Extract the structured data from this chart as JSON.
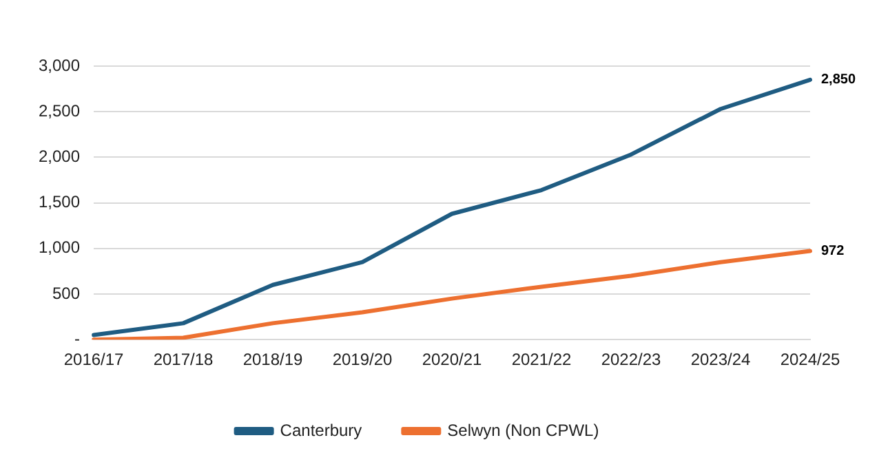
{
  "chart_data": {
    "type": "line",
    "categories": [
      "2016/17",
      "2017/18",
      "2018/19",
      "2019/20",
      "2020/21",
      "2021/22",
      "2022/23",
      "2023/24",
      "2024/25"
    ],
    "series": [
      {
        "name": "Canterbury",
        "color": "#1f5c82",
        "values": [
          50,
          180,
          600,
          850,
          1380,
          1640,
          2030,
          2530,
          2850
        ],
        "value_labels": [
          null,
          null,
          null,
          null,
          null,
          null,
          null,
          null,
          "2,850"
        ]
      },
      {
        "name": "Selwyn (Non CPWL)",
        "color": "#ed7030",
        "values": [
          0,
          20,
          180,
          300,
          450,
          580,
          700,
          850,
          972
        ],
        "value_labels": [
          null,
          null,
          null,
          null,
          null,
          null,
          null,
          null,
          "972"
        ]
      }
    ],
    "ylim": [
      0,
      3000
    ],
    "yticks": [
      {
        "value": 0,
        "label": "-"
      },
      {
        "value": 500,
        "label": "500"
      },
      {
        "value": 1000,
        "label": "1,000"
      },
      {
        "value": 1500,
        "label": "1,500"
      },
      {
        "value": 2000,
        "label": "2,000"
      },
      {
        "value": 2500,
        "label": "2,500"
      },
      {
        "value": 3000,
        "label": "3,000"
      }
    ],
    "grid": "y",
    "legend": "bottom",
    "marker": "none",
    "line_style": "solid"
  }
}
